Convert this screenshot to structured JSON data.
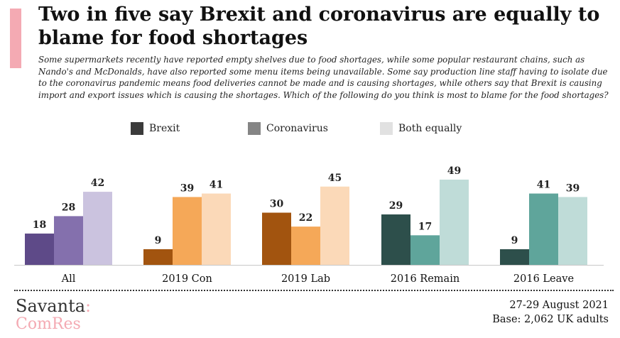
{
  "header": {
    "title": "Two in five say Brexit and coronavirus are equally to blame for food shortages",
    "subtitle": "Some supermarkets recently have reported empty shelves due to food shortages, while some popular restaurant chains, such as Nando's and McDonalds, have also reported some menu items being unavailable. Some say production line staff having to isolate due to the coronavirus pandemic means food deliveries cannot be made and is causing shortages, while others say that Brexit is causing import and export issues which is causing the shortages. Which of the following do you think is most to blame for the food shortages?"
  },
  "legend": {
    "items": [
      {
        "label": "Brexit",
        "color": "#3b3b3b"
      },
      {
        "label": "Coronavirus",
        "color": "#858585"
      },
      {
        "label": "Both equally",
        "color": "#e1e1e1"
      }
    ]
  },
  "chart_data": {
    "type": "bar",
    "title": "",
    "xlabel": "",
    "ylabel": "",
    "ylim": [
      0,
      55
    ],
    "grid": false,
    "legend_position": "top",
    "categories": [
      "All",
      "2019 Con",
      "2019 Lab",
      "2016 Remain",
      "2016 Leave"
    ],
    "series": [
      {
        "name": "Brexit",
        "values": [
          18,
          9,
          30,
          29,
          9
        ]
      },
      {
        "name": "Coronavirus",
        "values": [
          28,
          39,
          22,
          17,
          41
        ]
      },
      {
        "name": "Both equally",
        "values": [
          42,
          41,
          45,
          49,
          39
        ]
      }
    ],
    "colors": [
      [
        "#5e4a88",
        "#8470ad",
        "#cbc3df"
      ],
      [
        "#a2540f",
        "#f5a858",
        "#fbd9b8"
      ],
      [
        "#a2540f",
        "#f5a858",
        "#fbd9b8"
      ],
      [
        "#2d4f4b",
        "#5fa59b",
        "#bfdcd8"
      ],
      [
        "#2d4f4b",
        "#5fa59b",
        "#bfdcd8"
      ]
    ]
  },
  "footer": {
    "brand_main": "Savanta",
    "brand_colon": ":",
    "brand_sub": "ComRes",
    "date": "27-29 August 2021",
    "base": "Base: 2,062 UK adults"
  }
}
